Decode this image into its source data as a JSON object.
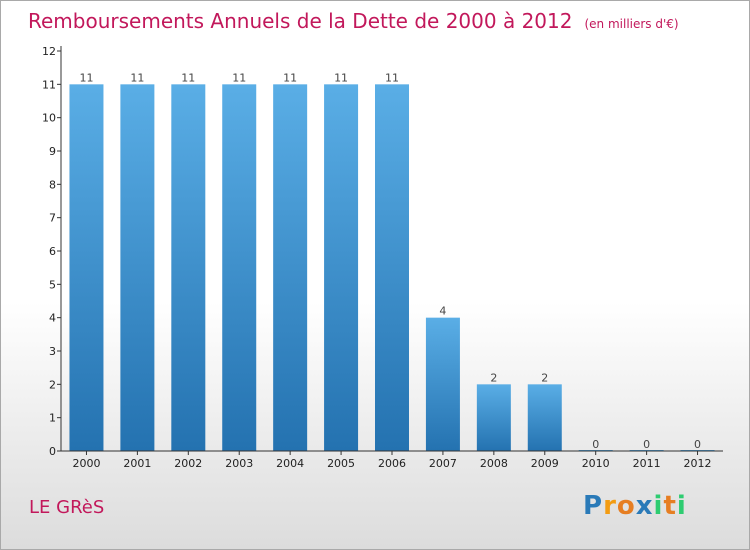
{
  "header": {
    "title": "Remboursements Annuels de la Dette de 2000 à 2012",
    "subtitle": "(en milliers d'€)"
  },
  "footer": {
    "commune": "LE GRèS",
    "logo_letters": [
      "P",
      "r",
      "o",
      "x",
      "i",
      "t",
      "i"
    ],
    "logo_colors": [
      "#2a7ab8",
      "#f39c12",
      "#e67e22",
      "#2a7ab8",
      "#2ecc71",
      "#e67e22",
      "#2ecc71"
    ]
  },
  "colors": {
    "title": "#c2185b",
    "bar_top": "#5aaee6",
    "bar_bottom": "#2472b0",
    "axis": "#333333"
  },
  "chart_data": {
    "type": "bar",
    "title": "Remboursements Annuels de la Dette de 2000 à 2012",
    "subtitle": "(en milliers d'€)",
    "categories": [
      "2000",
      "2001",
      "2002",
      "2003",
      "2004",
      "2005",
      "2006",
      "2007",
      "2008",
      "2009",
      "2010",
      "2011",
      "2012"
    ],
    "values": [
      11,
      11,
      11,
      11,
      11,
      11,
      11,
      4,
      2,
      2,
      0,
      0,
      0
    ],
    "data_labels": [
      "11",
      "11",
      "11",
      "11",
      "11",
      "11",
      "11",
      "4",
      "2",
      "2",
      "0",
      "0",
      "0"
    ],
    "ylim": [
      0,
      12
    ],
    "yticks": [
      "0",
      "1",
      "2",
      "3",
      "4",
      "5",
      "6",
      "7",
      "8",
      "9",
      "10",
      "11",
      "12"
    ],
    "grid": false,
    "legend": "none"
  }
}
